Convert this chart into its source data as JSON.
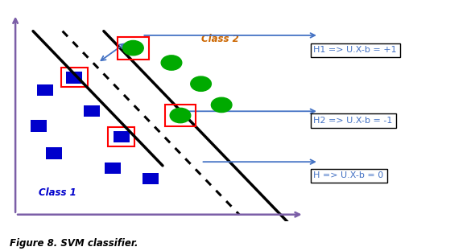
{
  "title": "Figure 8. SVM classifier.",
  "figsize": [
    5.9,
    3.12
  ],
  "dpi": 100,
  "axis_color": "#7b5ea7",
  "arrow_color": "#4472c4",
  "line_color": "#000000",
  "box_color": "#ff0000",
  "sq_color": "#0000cc",
  "circ_color": "#00aa00",
  "class1_label": "Class 1",
  "class2_label": "Class 2",
  "class1_color": "#0000cc",
  "class2_color": "#cc6600",
  "h1_label": "H1 => U.X-b = +1",
  "h2_label": "H2 => U.X-b = -1",
  "h_label": "H => U.X-b = 0",
  "label_color": "#4472c4",
  "caption": "Figure 8. SVM classifier."
}
